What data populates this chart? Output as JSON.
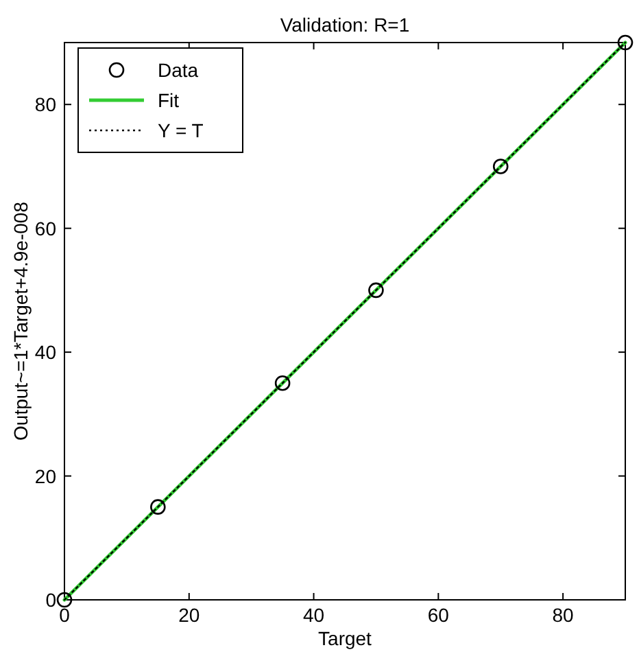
{
  "chart_data": {
    "type": "scatter",
    "title": "Validation: R=1",
    "xlabel": "Target",
    "ylabel": "Output~=1*Target+4.9e-008",
    "xlim": [
      0,
      90
    ],
    "ylim": [
      0,
      90
    ],
    "xticks": [
      0,
      20,
      40,
      60,
      80
    ],
    "yticks": [
      0,
      20,
      40,
      60,
      80
    ],
    "legend": "top left",
    "grid": false,
    "series": [
      {
        "name": "Data",
        "marker": "circle",
        "color": "#000000",
        "x": [
          0,
          15,
          35,
          50,
          70,
          90
        ],
        "values": [
          0,
          15,
          35,
          50,
          70,
          90
        ]
      },
      {
        "name": "Fit",
        "type": "line",
        "line_style": "solid",
        "color": "#33cc33",
        "x": [
          0,
          90
        ],
        "values": [
          0,
          90
        ]
      },
      {
        "name": "Y = T",
        "type": "line",
        "line_style": "dotted",
        "color": "#000000",
        "x": [
          0,
          90
        ],
        "values": [
          0,
          90
        ]
      }
    ]
  }
}
